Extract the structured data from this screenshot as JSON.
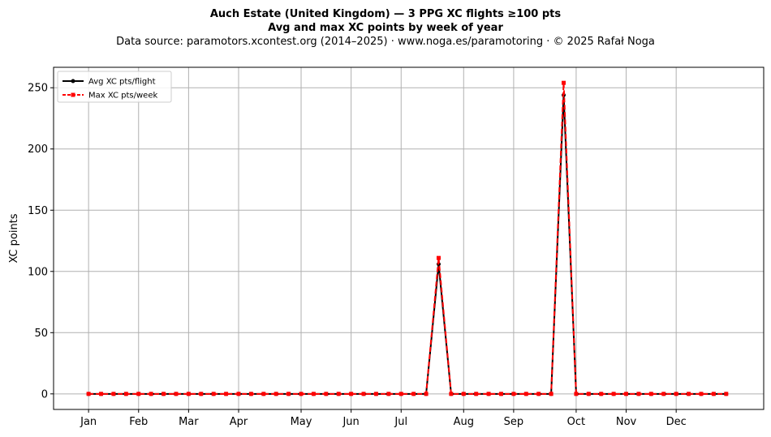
{
  "chart_data": {
    "type": "line",
    "title": "Auch Estate (United Kingdom)  —  3 PPG XC flights ≥100 pts",
    "subtitle": "Avg and max XC points by week of year",
    "source_line": "Data source: paramotors.xcontest.org (2014–2025)  ·  www.noga.es/paramotoring  ·  © 2025 Rafał Noga",
    "xlabel": "",
    "ylabel": "XC points",
    "x_tick_labels": [
      "Jan",
      "Feb",
      "Mar",
      "Apr",
      "May",
      "Jun",
      "Jul",
      "Aug",
      "Sep",
      "Oct",
      "Nov",
      "Dec"
    ],
    "x_tick_weeks": [
      1,
      5,
      9,
      13,
      18,
      22,
      26,
      31,
      35,
      40,
      44,
      48
    ],
    "xlim": [
      -1.8,
      55.0
    ],
    "ylim": [
      -12.7,
      266.7
    ],
    "y_ticks": [
      0,
      50,
      100,
      150,
      200,
      250
    ],
    "grid": true,
    "legend_position": "top-left",
    "x": [
      1,
      2,
      3,
      4,
      5,
      6,
      7,
      8,
      9,
      10,
      11,
      12,
      13,
      14,
      15,
      16,
      17,
      18,
      19,
      20,
      21,
      22,
      23,
      24,
      25,
      26,
      27,
      28,
      29,
      30,
      31,
      32,
      33,
      34,
      35,
      36,
      37,
      38,
      39,
      40,
      41,
      42,
      43,
      44,
      45,
      46,
      47,
      48,
      49,
      50,
      51,
      52
    ],
    "series": [
      {
        "name": "Avg XC pts/flight",
        "color": "#000000",
        "style": "solid",
        "marker": "circle",
        "values": [
          0,
          0,
          0,
          0,
          0,
          0,
          0,
          0,
          0,
          0,
          0,
          0,
          0,
          0,
          0,
          0,
          0,
          0,
          0,
          0,
          0,
          0,
          0,
          0,
          0,
          0,
          0,
          0,
          106,
          0,
          0,
          0,
          0,
          0,
          0,
          0,
          0,
          0,
          244,
          0,
          0,
          0,
          0,
          0,
          0,
          0,
          0,
          0,
          0,
          0,
          0,
          0
        ]
      },
      {
        "name": "Max XC pts/week",
        "color": "#ff0000",
        "style": "dashed",
        "marker": "square",
        "values": [
          0,
          0,
          0,
          0,
          0,
          0,
          0,
          0,
          0,
          0,
          0,
          0,
          0,
          0,
          0,
          0,
          0,
          0,
          0,
          0,
          0,
          0,
          0,
          0,
          0,
          0,
          0,
          0,
          111,
          0,
          0,
          0,
          0,
          0,
          0,
          0,
          0,
          0,
          254,
          0,
          0,
          0,
          0,
          0,
          0,
          0,
          0,
          0,
          0,
          0,
          0,
          0
        ]
      }
    ]
  }
}
